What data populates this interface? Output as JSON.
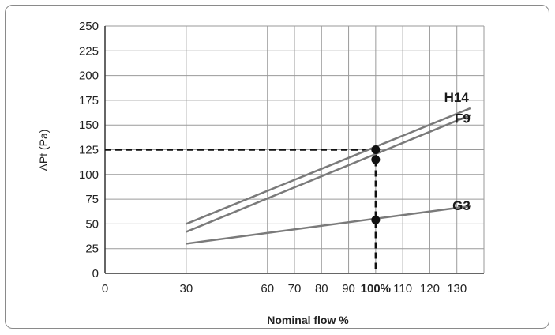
{
  "chart_data": {
    "type": "line",
    "xlabel": "Nominal flow %",
    "ylabel": "ΔPt (Pa)",
    "xlim": [
      0,
      140
    ],
    "ylim": [
      0,
      250
    ],
    "x_ticks": [
      {
        "value": 0,
        "label": "0"
      },
      {
        "value": 30,
        "label": "30"
      },
      {
        "value": 60,
        "label": "60"
      },
      {
        "value": 70,
        "label": "70"
      },
      {
        "value": 80,
        "label": "80"
      },
      {
        "value": 90,
        "label": "90"
      },
      {
        "value": 100,
        "label": "100%",
        "bold": true
      },
      {
        "value": 110,
        "label": "110"
      },
      {
        "value": 120,
        "label": "120"
      },
      {
        "value": 130,
        "label": "130"
      }
    ],
    "y_ticks": [
      0,
      25,
      50,
      75,
      100,
      125,
      150,
      175,
      200,
      225,
      250
    ],
    "grid": true,
    "series": [
      {
        "name": "H14",
        "x": [
          30,
          135
        ],
        "y": [
          50,
          167
        ]
      },
      {
        "name": "F9",
        "x": [
          30,
          135
        ],
        "y": [
          42,
          160
        ]
      },
      {
        "name": "G3",
        "x": [
          30,
          135
        ],
        "y": [
          30,
          68
        ]
      }
    ],
    "markers": [
      {
        "x": 100,
        "y": 125
      },
      {
        "x": 100,
        "y": 115
      },
      {
        "x": 100,
        "y": 54
      }
    ],
    "reference_lines": [
      {
        "from": [
          0,
          125
        ],
        "to": [
          100,
          125
        ],
        "style": "dashed"
      },
      {
        "from": [
          100,
          125
        ],
        "to": [
          100,
          0
        ],
        "style": "dashed"
      }
    ]
  }
}
